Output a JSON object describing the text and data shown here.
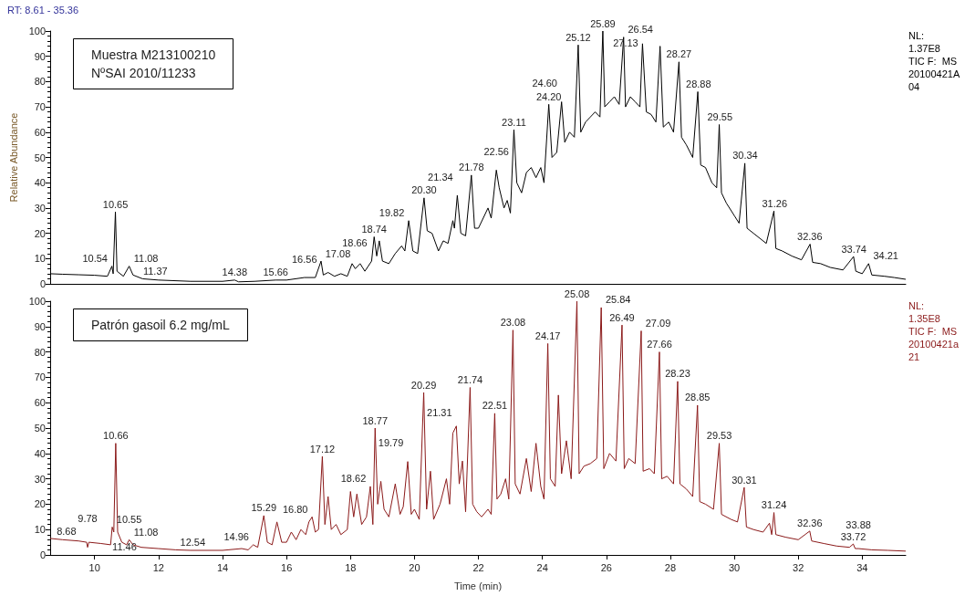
{
  "chart_data": [
    {
      "type": "line",
      "title": "Muestra M213100210\nNºSAI 2010/11233",
      "subtitle": "RT: 8.61 - 35.36",
      "ylabel": "Relative Abundance",
      "xlim": [
        8.61,
        35.36
      ],
      "xticks": [
        10,
        12,
        14,
        16,
        18,
        20,
        22,
        24,
        26,
        28,
        30,
        32,
        34
      ],
      "ylim": [
        0,
        100
      ],
      "yticks": [
        0,
        10,
        20,
        30,
        40,
        50,
        60,
        70,
        80,
        90,
        100
      ],
      "tick_labels": "y",
      "grid": false,
      "series": [
        {
          "color": "#000000",
          "x": [
            8.61,
            9.0,
            9.5,
            10.0,
            10.4,
            10.54,
            10.58,
            10.65,
            10.7,
            10.9,
            11.08,
            11.2,
            11.5,
            12.0,
            13.0,
            14.0,
            14.38,
            14.5,
            15.0,
            15.66,
            16.0,
            16.56,
            16.9,
            17.08,
            17.15,
            17.3,
            17.5,
            17.7,
            17.9,
            18.05,
            18.15,
            18.3,
            18.45,
            18.66,
            18.74,
            18.82,
            18.9,
            19.0,
            19.2,
            19.4,
            19.6,
            19.7,
            19.82,
            19.95,
            20.1,
            20.3,
            20.4,
            20.55,
            20.75,
            20.9,
            21.05,
            21.2,
            21.25,
            21.34,
            21.45,
            21.6,
            21.78,
            21.88,
            22.0,
            22.15,
            22.3,
            22.4,
            22.56,
            22.65,
            22.8,
            22.9,
            23.0,
            23.11,
            23.2,
            23.35,
            23.5,
            23.65,
            23.8,
            23.95,
            24.05,
            24.2,
            24.3,
            24.45,
            24.6,
            24.7,
            24.85,
            25.0,
            25.12,
            25.2,
            25.35,
            25.5,
            25.65,
            25.8,
            25.89,
            25.95,
            26.1,
            26.25,
            26.4,
            26.54,
            26.6,
            26.75,
            26.9,
            27.05,
            27.13,
            27.25,
            27.4,
            27.55,
            27.68,
            27.78,
            27.95,
            28.1,
            28.27,
            28.35,
            28.5,
            28.7,
            28.86,
            28.95,
            29.1,
            29.3,
            29.45,
            29.53,
            29.6,
            29.75,
            30.0,
            30.15,
            30.33,
            30.4,
            30.6,
            30.8,
            31.0,
            31.24,
            31.3,
            31.5,
            31.8,
            32.1,
            32.37,
            32.45,
            32.7,
            33.0,
            33.4,
            33.73,
            33.8,
            34.0,
            34.2,
            34.3,
            34.7,
            35.0,
            35.36
          ],
          "values": [
            4,
            3.8,
            3.6,
            3.4,
            3,
            7,
            4,
            28.5,
            5,
            3,
            7,
            3.5,
            2,
            1.5,
            1,
            1,
            1.5,
            0.8,
            1,
            1.5,
            1.5,
            2.5,
            2.5,
            9,
            3.5,
            4.5,
            3,
            4,
            3,
            8,
            6,
            8,
            5,
            9,
            18.6,
            11,
            17,
            9,
            8,
            12,
            15,
            13,
            25,
            13,
            12,
            34,
            21,
            20,
            13,
            17,
            16,
            25,
            22,
            35,
            20,
            19,
            43,
            22,
            22,
            26,
            30,
            26,
            45,
            38,
            30,
            33,
            28,
            61,
            40,
            36,
            44,
            46,
            42,
            46,
            40,
            71,
            50,
            52,
            72,
            56,
            60,
            58,
            94.5,
            60,
            64,
            66,
            68,
            66,
            100,
            70,
            72,
            74,
            71,
            97.6,
            70,
            74,
            72,
            70,
            95,
            68,
            67,
            64,
            94,
            62,
            64,
            60,
            87.8,
            58,
            55,
            50,
            76,
            47,
            46,
            40,
            38,
            63,
            36,
            32,
            27,
            24,
            47.7,
            22,
            20,
            18,
            16,
            28.8,
            14,
            13,
            11,
            9.5,
            15.7,
            8.5,
            8,
            6.5,
            5.5,
            10.8,
            5,
            4,
            8,
            3.5,
            3,
            2.5,
            1.8
          ]
        }
      ],
      "annotations": [
        "NL:",
        "1.37E8",
        "TIC F:  MS",
        "20100421A04",
        {
          "text": "10.54",
          "x": 10.54,
          "y": 7
        },
        {
          "text": "10.65",
          "x": 10.65,
          "y": 28.5
        },
        {
          "text": "11.08",
          "x": 11.08,
          "y": 7
        },
        {
          "text": "11.37",
          "x": 11.37,
          "y": 2
        },
        {
          "text": "14.38",
          "x": 14.38,
          "y": 1.5
        },
        {
          "text": "15.66",
          "x": 15.66,
          "y": 1.5
        },
        {
          "text": "16.56",
          "x": 16.56,
          "y": 2.5
        },
        {
          "text": "17.08",
          "x": 17.08,
          "y": 9
        },
        {
          "text": "18.66",
          "x": 18.66,
          "y": 9
        },
        {
          "text": "18.74",
          "x": 18.74,
          "y": 18.6
        },
        {
          "text": "19.82",
          "x": 19.82,
          "y": 25
        },
        {
          "text": "20.30",
          "x": 20.3,
          "y": 34
        },
        {
          "text": "21.34",
          "x": 21.34,
          "y": 35
        },
        {
          "text": "21.78",
          "x": 21.78,
          "y": 43
        },
        {
          "text": "22.56",
          "x": 22.56,
          "y": 45
        },
        {
          "text": "23.11",
          "x": 23.11,
          "y": 61
        },
        {
          "text": "24.20",
          "x": 24.2,
          "y": 71
        },
        {
          "text": "24.60",
          "x": 24.6,
          "y": 72
        },
        {
          "text": "25.12",
          "x": 25.12,
          "y": 94.5
        },
        {
          "text": "25.89",
          "x": 25.89,
          "y": 100
        },
        {
          "text": "26.54",
          "x": 26.54,
          "y": 97.6
        },
        {
          "text": "27.13",
          "x": 27.13,
          "y": 95
        },
        {
          "text": "28.27",
          "x": 28.27,
          "y": 87.8
        },
        {
          "text": "28.88",
          "x": 28.88,
          "y": 76
        },
        {
          "text": "29.55",
          "x": 29.55,
          "y": 63
        },
        {
          "text": "30.34",
          "x": 30.34,
          "y": 47.7
        },
        {
          "text": "31.26",
          "x": 31.26,
          "y": 28.8
        },
        {
          "text": "32.36",
          "x": 32.36,
          "y": 15.7
        },
        {
          "text": "33.74",
          "x": 33.74,
          "y": 10.8
        },
        {
          "text": "34.21",
          "x": 34.21,
          "y": 8
        }
      ]
    },
    {
      "type": "line",
      "title": "Patrón gasoil 6.2 mg/mL",
      "xlabel": "Time (min)",
      "xlim": [
        8.61,
        35.36
      ],
      "xticks": [
        10,
        12,
        14,
        16,
        18,
        20,
        22,
        24,
        26,
        28,
        30,
        32,
        34
      ],
      "ylim": [
        0,
        100
      ],
      "yticks": [
        0,
        10,
        20,
        30,
        40,
        50,
        60,
        70,
        80,
        90,
        100
      ],
      "grid": false,
      "series": [
        {
          "color": "#8b1a1a",
          "x": [
            8.61,
            9.0,
            9.5,
            9.75,
            9.78,
            9.82,
            10.2,
            10.5,
            10.55,
            10.6,
            10.66,
            10.72,
            10.85,
            11.0,
            11.08,
            11.2,
            11.46,
            12.0,
            12.54,
            13.0,
            14.0,
            14.6,
            14.8,
            14.96,
            15.1,
            15.29,
            15.4,
            15.55,
            15.7,
            15.85,
            16.0,
            16.15,
            16.3,
            16.45,
            16.6,
            16.7,
            16.8,
            16.9,
            17.0,
            17.12,
            17.2,
            17.3,
            17.4,
            17.55,
            17.7,
            17.9,
            18.0,
            18.1,
            18.2,
            18.35,
            18.5,
            18.62,
            18.7,
            18.77,
            18.85,
            18.95,
            19.05,
            19.2,
            19.4,
            19.55,
            19.65,
            19.79,
            19.9,
            20.0,
            20.15,
            20.29,
            20.38,
            20.5,
            20.6,
            20.8,
            21.0,
            21.1,
            21.2,
            21.31,
            21.4,
            21.5,
            21.6,
            21.74,
            21.82,
            21.95,
            22.1,
            22.3,
            22.4,
            22.51,
            22.58,
            22.7,
            22.85,
            22.95,
            23.08,
            23.15,
            23.3,
            23.5,
            23.65,
            23.8,
            23.95,
            24.05,
            24.17,
            24.25,
            24.4,
            24.5,
            24.6,
            24.75,
            24.9,
            25.08,
            25.15,
            25.3,
            25.5,
            25.7,
            25.84,
            25.92,
            26.1,
            26.3,
            26.49,
            26.56,
            26.7,
            26.9,
            27.09,
            27.15,
            27.35,
            27.5,
            27.66,
            27.73,
            27.9,
            28.1,
            28.23,
            28.3,
            28.5,
            28.7,
            28.85,
            28.92,
            29.1,
            29.35,
            29.53,
            29.6,
            29.9,
            30.1,
            30.31,
            30.38,
            30.6,
            30.9,
            31.1,
            31.17,
            31.24,
            31.3,
            31.6,
            32.0,
            32.36,
            32.42,
            32.8,
            33.2,
            33.6,
            33.72,
            33.78,
            33.88,
            34.3,
            34.8,
            35.36
          ],
          "values": [
            6.5,
            6,
            5.5,
            5,
            3,
            5,
            4.5,
            4,
            11,
            9,
            44,
            9,
            5,
            4,
            6,
            4,
            3,
            2.5,
            2,
            1.8,
            1.8,
            2.5,
            2,
            4,
            3,
            15.5,
            5,
            4,
            13,
            5,
            5,
            9,
            6,
            10,
            8,
            13,
            15,
            9,
            10,
            38.8,
            12,
            23,
            10,
            12,
            8,
            10,
            25,
            15,
            24,
            12,
            15,
            27,
            12,
            50,
            20,
            29,
            18,
            15,
            28,
            16,
            19,
            36.8,
            16,
            18,
            14,
            64,
            18,
            33,
            14,
            20,
            30,
            20,
            48,
            50.8,
            28,
            37,
            17,
            66,
            20,
            17,
            15,
            18,
            16,
            55.8,
            22,
            24,
            30,
            22,
            88.6,
            28,
            24,
            38,
            25,
            44,
            27,
            22,
            83.3,
            30,
            27,
            63,
            32,
            45,
            30,
            100,
            32,
            35,
            36,
            38,
            97.5,
            34,
            40,
            37,
            90.6,
            34,
            38,
            36,
            88.3,
            33,
            34,
            32,
            80,
            30,
            31,
            28,
            68.4,
            28,
            26,
            23,
            59,
            21,
            20,
            18,
            44,
            16,
            14,
            13,
            26.6,
            11,
            10,
            9,
            12.5,
            8,
            16.7,
            8,
            7,
            6,
            9.4,
            5.5,
            4.5,
            3.5,
            3,
            4.3,
            2.5,
            2.5,
            2,
            1.8,
            1.5
          ]
        }
      ],
      "annotations": [
        "NL:",
        "1.35E8",
        "TIC F:  MS",
        "20100421a21",
        {
          "text": "8.68",
          "x": 8.68,
          "y": 6.4
        },
        {
          "text": "9.78",
          "x": 9.78,
          "y": 5
        },
        {
          "text": "10.55",
          "x": 10.55,
          "y": 11
        },
        {
          "text": "10.66",
          "x": 10.66,
          "y": 44
        },
        {
          "text": "11.08",
          "x": 11.08,
          "y": 6
        },
        {
          "text": "11.46",
          "x": 11.46,
          "y": 3
        },
        {
          "text": "12.54",
          "x": 12.54,
          "y": 2
        },
        {
          "text": "14.96",
          "x": 14.96,
          "y": 4
        },
        {
          "text": "15.29",
          "x": 15.29,
          "y": 15.5
        },
        {
          "text": "16.80",
          "x": 16.8,
          "y": 15
        },
        {
          "text": "17.12",
          "x": 17.12,
          "y": 38.8
        },
        {
          "text": "18.62",
          "x": 18.62,
          "y": 27
        },
        {
          "text": "18.77",
          "x": 18.77,
          "y": 50
        },
        {
          "text": "19.79",
          "x": 19.79,
          "y": 36.8
        },
        {
          "text": "20.29",
          "x": 20.29,
          "y": 64
        },
        {
          "text": "21.31",
          "x": 21.31,
          "y": 50.8
        },
        {
          "text": "21.74",
          "x": 21.74,
          "y": 66
        },
        {
          "text": "22.51",
          "x": 22.51,
          "y": 55.8
        },
        {
          "text": "23.08",
          "x": 23.08,
          "y": 88.6
        },
        {
          "text": "24.17",
          "x": 24.17,
          "y": 83.3
        },
        {
          "text": "25.08",
          "x": 25.08,
          "y": 100
        },
        {
          "text": "25.84",
          "x": 25.84,
          "y": 97.5
        },
        {
          "text": "26.49",
          "x": 26.49,
          "y": 90.6
        },
        {
          "text": "27.09",
          "x": 27.09,
          "y": 88.3
        },
        {
          "text": "27.66",
          "x": 27.66,
          "y": 80
        },
        {
          "text": "28.23",
          "x": 28.23,
          "y": 68.4
        },
        {
          "text": "28.85",
          "x": 28.85,
          "y": 59
        },
        {
          "text": "29.53",
          "x": 29.53,
          "y": 44
        },
        {
          "text": "30.31",
          "x": 30.31,
          "y": 26.6
        },
        {
          "text": "31.24",
          "x": 31.24,
          "y": 16.7
        },
        {
          "text": "32.36",
          "x": 32.36,
          "y": 9.4
        },
        {
          "text": "33.72",
          "x": 33.72,
          "y": 4.3
        },
        {
          "text": "33.88",
          "x": 33.88,
          "y": 2.5
        }
      ]
    }
  ]
}
